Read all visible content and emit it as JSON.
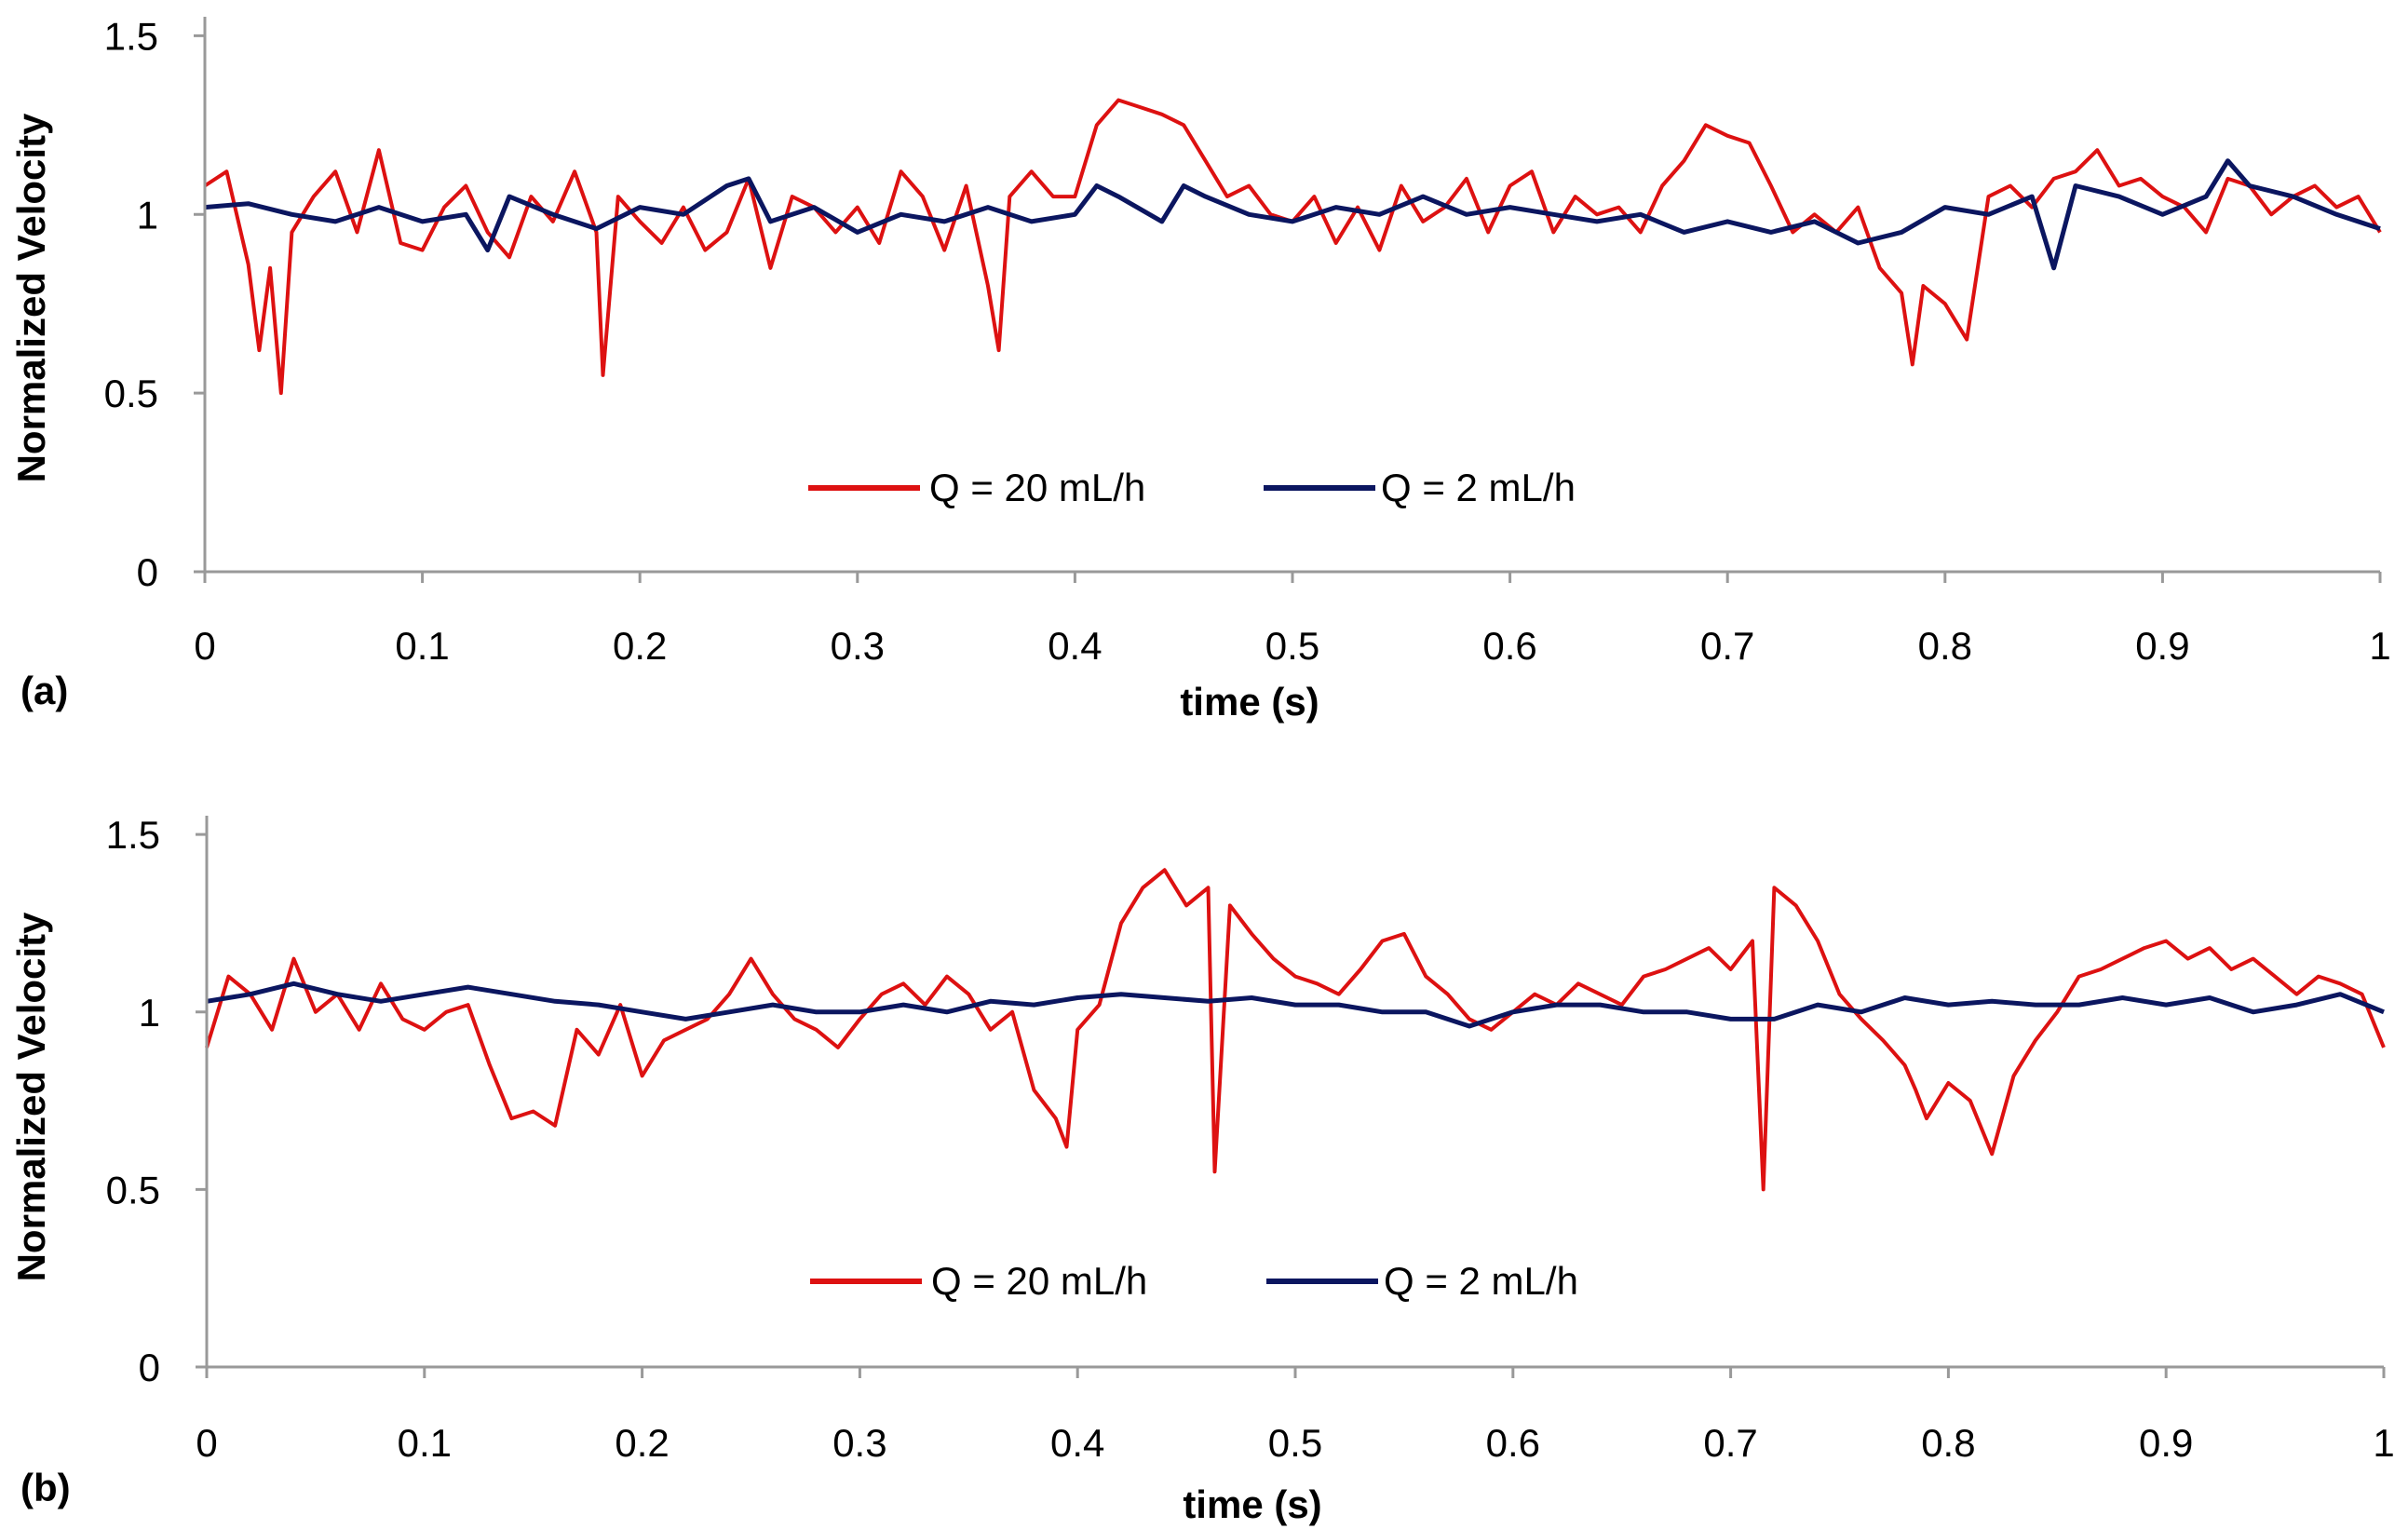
{
  "chart_data": [
    {
      "type": "line",
      "panel_label": "(a)",
      "xlabel": "time (s)",
      "ylabel": "Normalized Velocity",
      "xlim": [
        0,
        1
      ],
      "ylim": [
        0,
        1.6
      ],
      "x_ticks": [
        0,
        0.1,
        0.2,
        0.3,
        0.4,
        0.5,
        0.6,
        0.7,
        0.8,
        0.9,
        1
      ],
      "x_tick_labels": [
        "0",
        "0.1",
        "0.2",
        "0.3",
        "0.4",
        "0.5",
        "0.6",
        "0.7",
        "0.8",
        "0.9",
        "1"
      ],
      "y_ticks": [
        0,
        0.5,
        1,
        1.5
      ],
      "y_tick_labels": [
        "0",
        "0.5",
        "1",
        "1.5"
      ],
      "grid": false,
      "legend_position": "bottom-center",
      "series": [
        {
          "name": "Q = 20 mL/h",
          "color": "#dd1111",
          "x": [
            0,
            0.01,
            0.02,
            0.025,
            0.03,
            0.035,
            0.04,
            0.05,
            0.06,
            0.07,
            0.08,
            0.09,
            0.1,
            0.11,
            0.12,
            0.13,
            0.14,
            0.15,
            0.16,
            0.17,
            0.18,
            0.183,
            0.19,
            0.2,
            0.21,
            0.22,
            0.23,
            0.24,
            0.25,
            0.26,
            0.27,
            0.28,
            0.29,
            0.3,
            0.31,
            0.32,
            0.33,
            0.34,
            0.35,
            0.36,
            0.365,
            0.37,
            0.38,
            0.39,
            0.4,
            0.41,
            0.42,
            0.43,
            0.44,
            0.45,
            0.46,
            0.47,
            0.48,
            0.49,
            0.5,
            0.51,
            0.52,
            0.53,
            0.54,
            0.55,
            0.56,
            0.57,
            0.58,
            0.59,
            0.6,
            0.61,
            0.62,
            0.63,
            0.64,
            0.65,
            0.66,
            0.67,
            0.68,
            0.69,
            0.7,
            0.71,
            0.72,
            0.73,
            0.74,
            0.75,
            0.76,
            0.77,
            0.78,
            0.785,
            0.79,
            0.8,
            0.81,
            0.82,
            0.83,
            0.84,
            0.85,
            0.86,
            0.87,
            0.88,
            0.89,
            0.9,
            0.91,
            0.92,
            0.93,
            0.94,
            0.95,
            0.96,
            0.97,
            0.98,
            0.99,
            1
          ],
          "values": [
            1.08,
            1.12,
            0.86,
            0.62,
            0.85,
            0.5,
            0.95,
            1.05,
            1.12,
            0.95,
            1.18,
            0.92,
            0.9,
            1.02,
            1.08,
            0.95,
            0.88,
            1.05,
            0.98,
            1.12,
            0.95,
            0.55,
            1.05,
            0.98,
            0.92,
            1.02,
            0.9,
            0.95,
            1.1,
            0.85,
            1.05,
            1.02,
            0.95,
            1.02,
            0.92,
            1.12,
            1.05,
            0.9,
            1.08,
            0.8,
            0.62,
            1.05,
            1.12,
            1.05,
            1.05,
            1.25,
            1.32,
            1.3,
            1.28,
            1.25,
            1.15,
            1.05,
            1.08,
            1.0,
            0.98,
            1.05,
            0.92,
            1.02,
            0.9,
            1.08,
            0.98,
            1.02,
            1.1,
            0.95,
            1.08,
            1.12,
            0.95,
            1.05,
            1.0,
            1.02,
            0.95,
            1.08,
            1.15,
            1.25,
            1.22,
            1.2,
            1.08,
            0.95,
            1.0,
            0.95,
            1.02,
            0.85,
            0.78,
            0.58,
            0.8,
            0.75,
            0.65,
            1.05,
            1.08,
            1.02,
            1.1,
            1.12,
            1.18,
            1.08,
            1.1,
            1.05,
            1.02,
            0.95,
            1.1,
            1.08,
            1.0,
            1.05,
            1.08,
            1.02,
            1.05,
            0.95
          ]
        },
        {
          "name": "Q = 2 mL/h",
          "color": "#0b1660",
          "x": [
            0,
            0.02,
            0.04,
            0.06,
            0.08,
            0.1,
            0.12,
            0.13,
            0.14,
            0.16,
            0.18,
            0.2,
            0.22,
            0.24,
            0.25,
            0.26,
            0.28,
            0.3,
            0.32,
            0.34,
            0.36,
            0.38,
            0.4,
            0.41,
            0.42,
            0.44,
            0.45,
            0.46,
            0.48,
            0.5,
            0.52,
            0.54,
            0.56,
            0.58,
            0.6,
            0.62,
            0.64,
            0.66,
            0.68,
            0.7,
            0.72,
            0.74,
            0.76,
            0.78,
            0.8,
            0.82,
            0.84,
            0.85,
            0.86,
            0.88,
            0.9,
            0.92,
            0.93,
            0.94,
            0.96,
            0.98,
            1
          ],
          "values": [
            1.02,
            1.03,
            1.0,
            0.98,
            1.02,
            0.98,
            1.0,
            0.9,
            1.05,
            1.0,
            0.96,
            1.02,
            1.0,
            1.08,
            1.1,
            0.98,
            1.02,
            0.95,
            1.0,
            0.98,
            1.02,
            0.98,
            1.0,
            1.08,
            1.05,
            0.98,
            1.08,
            1.05,
            1.0,
            0.98,
            1.02,
            1.0,
            1.05,
            1.0,
            1.02,
            1.0,
            0.98,
            1.0,
            0.95,
            0.98,
            0.95,
            0.98,
            0.92,
            0.95,
            1.02,
            1.0,
            1.05,
            0.85,
            1.08,
            1.05,
            1.0,
            1.05,
            1.15,
            1.08,
            1.05,
            1.0,
            0.96
          ]
        }
      ]
    },
    {
      "type": "line",
      "panel_label": "(b)",
      "xlabel": "time (s)",
      "ylabel": "Normalized Velocity",
      "xlim": [
        0,
        1
      ],
      "ylim": [
        0,
        1.6
      ],
      "x_ticks": [
        0,
        0.1,
        0.2,
        0.3,
        0.4,
        0.5,
        0.6,
        0.7,
        0.8,
        0.9,
        1
      ],
      "x_tick_labels": [
        "0",
        "0.1",
        "0.2",
        "0.3",
        "0.4",
        "0.5",
        "0.6",
        "0.7",
        "0.8",
        "0.9",
        "1"
      ],
      "y_ticks": [
        0,
        0.5,
        1,
        1.5
      ],
      "y_tick_labels": [
        "0",
        "0.5",
        "1",
        "1.5"
      ],
      "grid": false,
      "legend_position": "bottom-center",
      "series": [
        {
          "name": "Q = 20 mL/h",
          "color": "#dd1111",
          "x": [
            0,
            0.01,
            0.02,
            0.03,
            0.04,
            0.05,
            0.06,
            0.07,
            0.08,
            0.09,
            0.1,
            0.11,
            0.12,
            0.13,
            0.14,
            0.15,
            0.16,
            0.17,
            0.18,
            0.19,
            0.2,
            0.21,
            0.22,
            0.23,
            0.24,
            0.25,
            0.26,
            0.27,
            0.28,
            0.29,
            0.3,
            0.31,
            0.32,
            0.33,
            0.34,
            0.35,
            0.36,
            0.37,
            0.38,
            0.39,
            0.395,
            0.4,
            0.41,
            0.42,
            0.43,
            0.44,
            0.45,
            0.46,
            0.463,
            0.47,
            0.48,
            0.49,
            0.5,
            0.51,
            0.52,
            0.53,
            0.54,
            0.55,
            0.56,
            0.57,
            0.58,
            0.59,
            0.6,
            0.61,
            0.62,
            0.63,
            0.64,
            0.65,
            0.66,
            0.67,
            0.68,
            0.69,
            0.7,
            0.71,
            0.715,
            0.72,
            0.73,
            0.74,
            0.75,
            0.76,
            0.77,
            0.78,
            0.785,
            0.79,
            0.8,
            0.81,
            0.82,
            0.83,
            0.84,
            0.85,
            0.86,
            0.87,
            0.88,
            0.89,
            0.9,
            0.91,
            0.92,
            0.93,
            0.94,
            0.95,
            0.96,
            0.97,
            0.98,
            0.99,
            1
          ],
          "values": [
            0.9,
            1.1,
            1.05,
            0.95,
            1.15,
            1.0,
            1.05,
            0.95,
            1.08,
            0.98,
            0.95,
            1.0,
            1.02,
            0.85,
            0.7,
            0.72,
            0.68,
            0.95,
            0.88,
            1.02,
            0.82,
            0.92,
            0.95,
            0.98,
            1.05,
            1.15,
            1.05,
            0.98,
            0.95,
            0.9,
            0.98,
            1.05,
            1.08,
            1.02,
            1.1,
            1.05,
            0.95,
            1.0,
            0.78,
            0.7,
            0.62,
            0.95,
            1.02,
            1.25,
            1.35,
            1.4,
            1.3,
            1.35,
            0.55,
            1.3,
            1.22,
            1.15,
            1.1,
            1.08,
            1.05,
            1.12,
            1.2,
            1.22,
            1.1,
            1.05,
            0.98,
            0.95,
            1.0,
            1.05,
            1.02,
            1.08,
            1.05,
            1.02,
            1.1,
            1.12,
            1.15,
            1.18,
            1.12,
            1.2,
            0.5,
            1.35,
            1.3,
            1.2,
            1.05,
            0.98,
            0.92,
            0.85,
            0.78,
            0.7,
            0.8,
            0.75,
            0.6,
            0.82,
            0.92,
            1.0,
            1.1,
            1.12,
            1.15,
            1.18,
            1.2,
            1.15,
            1.18,
            1.12,
            1.15,
            1.1,
            1.05,
            1.1,
            1.08,
            1.05,
            0.9
          ]
        },
        {
          "name": "Q = 2 mL/h",
          "color": "#0b1660",
          "x": [
            0,
            0.02,
            0.04,
            0.06,
            0.08,
            0.1,
            0.12,
            0.14,
            0.16,
            0.18,
            0.2,
            0.22,
            0.24,
            0.26,
            0.28,
            0.3,
            0.32,
            0.34,
            0.36,
            0.38,
            0.4,
            0.42,
            0.44,
            0.46,
            0.48,
            0.5,
            0.52,
            0.54,
            0.56,
            0.58,
            0.6,
            0.62,
            0.64,
            0.66,
            0.68,
            0.7,
            0.72,
            0.74,
            0.76,
            0.78,
            0.8,
            0.82,
            0.84,
            0.86,
            0.88,
            0.9,
            0.92,
            0.94,
            0.96,
            0.98,
            1
          ],
          "values": [
            1.03,
            1.05,
            1.08,
            1.05,
            1.03,
            1.05,
            1.07,
            1.05,
            1.03,
            1.02,
            1.0,
            0.98,
            1.0,
            1.02,
            1.0,
            1.0,
            1.02,
            1.0,
            1.03,
            1.02,
            1.04,
            1.05,
            1.04,
            1.03,
            1.04,
            1.02,
            1.02,
            1.0,
            1.0,
            0.96,
            1.0,
            1.02,
            1.02,
            1.0,
            1.0,
            0.98,
            0.98,
            1.02,
            1.0,
            1.04,
            1.02,
            1.03,
            1.02,
            1.02,
            1.04,
            1.02,
            1.04,
            1.0,
            1.02,
            1.05,
            1.0
          ]
        }
      ]
    }
  ]
}
